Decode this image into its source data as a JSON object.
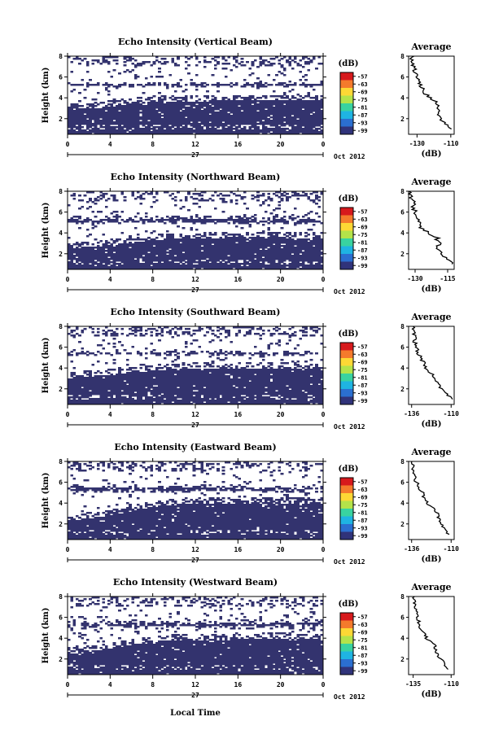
{
  "figure": {
    "xlabel": "Local Time",
    "date_label": "Oct 2012",
    "day_label": "27",
    "ylabel": "Height (km)",
    "colorbar_unit": "(dB)",
    "colorbar_ticks": [
      "-57",
      "-63",
      "-69",
      "-75",
      "-81",
      "-87",
      "-93",
      "-99"
    ],
    "colorbar_colors": [
      "#d7191c",
      "#f47a2c",
      "#fdd835",
      "#b4e34a",
      "#39d3a0",
      "#1fb4e2",
      "#2b6fd0",
      "#30337a"
    ],
    "fill_color": "#33336e",
    "avg_title": "Average",
    "avg_xlabel": "(dB)"
  },
  "chart_data": [
    {
      "type": "heatmap",
      "title": "Echo Intensity (Vertical Beam)",
      "xlabel": "Local Time",
      "ylabel": "Height (km)",
      "x_ticks": [
        "0",
        "4",
        "8",
        "12",
        "16",
        "20",
        "0"
      ],
      "y_ticks": [
        "2",
        "4",
        "6",
        "8"
      ],
      "xlim": [
        0,
        24
      ],
      "ylim": [
        0.5,
        8
      ],
      "colorbar": {
        "label": "(dB)",
        "ticks": [
          -57,
          -63,
          -69,
          -75,
          -81,
          -87,
          -93,
          -99
        ]
      },
      "dense_layer_top_km": [
        3.0,
        3.2,
        3.6,
        3.8,
        3.8,
        3.9,
        3.9,
        3.9,
        3.9
      ],
      "layer_x_hours": [
        0,
        3,
        6,
        9,
        12,
        15,
        18,
        21,
        24
      ],
      "upper_band_km": [
        5.0,
        5.5
      ],
      "average_profile": {
        "title": "Average",
        "xlabel": "(dB)",
        "x_ticks": [
          "-130",
          "-110"
        ],
        "xlim": [
          -135,
          -108
        ],
        "y_ticks": [
          "2",
          "4",
          "6",
          "8"
        ],
        "ylim": [
          0.5,
          8
        ],
        "height_km": [
          1.0,
          1.5,
          2.0,
          2.5,
          3.0,
          3.5,
          4.0,
          4.5,
          5.0,
          5.5,
          6.0,
          6.5,
          7.0,
          7.5,
          8.0
        ],
        "intensity_db": [
          -110,
          -113,
          -116,
          -118,
          -117,
          -118,
          -122,
          -126,
          -127,
          -129,
          -130,
          -131,
          -132,
          -133,
          -133
        ]
      }
    },
    {
      "type": "heatmap",
      "title": "Echo Intensity (Northward Beam)",
      "xlabel": "Local Time",
      "ylabel": "Height (km)",
      "x_ticks": [
        "0",
        "4",
        "8",
        "12",
        "16",
        "20",
        "0"
      ],
      "y_ticks": [
        "2",
        "4",
        "6",
        "8"
      ],
      "xlim": [
        0,
        24
      ],
      "ylim": [
        0.5,
        8
      ],
      "colorbar": {
        "label": "(dB)",
        "ticks": [
          -57,
          -63,
          -69,
          -75,
          -81,
          -87,
          -93,
          -99
        ]
      },
      "dense_layer_top_km": [
        2.6,
        2.9,
        3.2,
        3.5,
        3.6,
        3.7,
        3.7,
        3.7,
        3.6
      ],
      "layer_x_hours": [
        0,
        3,
        6,
        9,
        12,
        15,
        18,
        21,
        24
      ],
      "upper_band_km": [
        4.8,
        5.6
      ],
      "average_profile": {
        "title": "Average",
        "xlabel": "(dB)",
        "x_ticks": [
          "-130",
          "-115"
        ],
        "xlim": [
          -133,
          -112
        ],
        "y_ticks": [
          "2",
          "4",
          "6",
          "8"
        ],
        "ylim": [
          0.5,
          8
        ],
        "height_km": [
          1.0,
          1.5,
          2.0,
          2.5,
          3.0,
          3.5,
          4.0,
          4.5,
          5.0,
          5.5,
          6.0,
          6.5,
          7.0,
          7.5,
          8.0
        ],
        "intensity_db": [
          -113,
          -115,
          -118,
          -120,
          -119,
          -120,
          -124,
          -127,
          -128,
          -129,
          -130,
          -131,
          -131,
          -132,
          -132
        ]
      }
    },
    {
      "type": "heatmap",
      "title": "Echo Intensity (Southward Beam)",
      "xlabel": "Local Time",
      "ylabel": "Height (km)",
      "x_ticks": [
        "0",
        "4",
        "8",
        "12",
        "16",
        "20",
        "0"
      ],
      "y_ticks": [
        "2",
        "4",
        "6",
        "8"
      ],
      "xlim": [
        0,
        24
      ],
      "ylim": [
        0.5,
        8
      ],
      "colorbar": {
        "label": "(dB)",
        "ticks": [
          -57,
          -63,
          -69,
          -75,
          -81,
          -87,
          -93,
          -99
        ]
      },
      "dense_layer_top_km": [
        3.2,
        3.4,
        3.7,
        4.0,
        4.1,
        4.1,
        4.1,
        4.1,
        4.0
      ],
      "layer_x_hours": [
        0,
        3,
        6,
        9,
        12,
        15,
        18,
        21,
        24
      ],
      "upper_band_km": [
        5.2,
        5.6
      ],
      "average_profile": {
        "title": "Average",
        "xlabel": "(dB)",
        "x_ticks": [
          "-136",
          "-110"
        ],
        "xlim": [
          -138,
          -108
        ],
        "y_ticks": [
          "2",
          "4",
          "6",
          "8"
        ],
        "ylim": [
          0.5,
          8
        ],
        "height_km": [
          1.0,
          1.5,
          2.0,
          2.5,
          3.0,
          3.5,
          4.0,
          4.5,
          5.0,
          5.5,
          6.0,
          6.5,
          7.0,
          7.5,
          8.0
        ],
        "intensity_db": [
          -110,
          -113,
          -117,
          -119,
          -121,
          -123,
          -127,
          -128,
          -130,
          -132,
          -133,
          -134,
          -134,
          -135,
          -135
        ]
      }
    },
    {
      "type": "heatmap",
      "title": "Echo Intensity (Eastward Beam)",
      "xlabel": "Local Time",
      "ylabel": "Height (km)",
      "x_ticks": [
        "0",
        "4",
        "8",
        "12",
        "16",
        "20",
        "0"
      ],
      "y_ticks": [
        "2",
        "4",
        "6",
        "8"
      ],
      "xlim": [
        0,
        24
      ],
      "ylim": [
        0.5,
        8
      ],
      "colorbar": {
        "label": "(dB)",
        "ticks": [
          -57,
          -63,
          -69,
          -75,
          -81,
          -87,
          -93,
          -99
        ]
      },
      "dense_layer_top_km": [
        2.4,
        2.8,
        3.4,
        3.9,
        4.1,
        4.1,
        4.1,
        4.1,
        4.1
      ],
      "layer_x_hours": [
        0,
        3,
        6,
        9,
        12,
        15,
        18,
        21,
        24
      ],
      "upper_band_km": [
        5.0,
        5.7
      ],
      "average_profile": {
        "title": "Average",
        "xlabel": "(dB)",
        "x_ticks": [
          "-136",
          "-110"
        ],
        "xlim": [
          -138,
          -108
        ],
        "y_ticks": [
          "2",
          "4",
          "6",
          "8"
        ],
        "ylim": [
          0.5,
          8
        ],
        "height_km": [
          1.0,
          1.5,
          2.0,
          2.5,
          3.0,
          3.5,
          4.0,
          4.5,
          5.0,
          5.5,
          6.0,
          6.5,
          7.0,
          7.5,
          8.0
        ],
        "intensity_db": [
          -112,
          -114,
          -117,
          -118,
          -119,
          -121,
          -126,
          -128,
          -129,
          -131,
          -133,
          -134,
          -135,
          -135,
          -135
        ]
      }
    },
    {
      "type": "heatmap",
      "title": "Echo Intensity (Westward Beam)",
      "xlabel": "Local Time",
      "ylabel": "Height (km)",
      "x_ticks": [
        "0",
        "4",
        "8",
        "12",
        "16",
        "20",
        "0"
      ],
      "y_ticks": [
        "2",
        "4",
        "6",
        "8"
      ],
      "xlim": [
        0,
        24
      ],
      "ylim": [
        0.5,
        8
      ],
      "colorbar": {
        "label": "(dB)",
        "ticks": [
          -57,
          -63,
          -69,
          -75,
          -81,
          -87,
          -93,
          -99
        ]
      },
      "dense_layer_top_km": [
        2.6,
        3.0,
        3.5,
        3.9,
        4.0,
        4.0,
        4.1,
        4.1,
        4.0
      ],
      "layer_x_hours": [
        0,
        3,
        6,
        9,
        12,
        15,
        18,
        21,
        24
      ],
      "upper_band_km": [
        4.9,
        5.8
      ],
      "average_profile": {
        "title": "Average",
        "xlabel": "(dB)",
        "x_ticks": [
          "-135",
          "-110"
        ],
        "xlim": [
          -138,
          -108
        ],
        "y_ticks": [
          "2",
          "4",
          "6",
          "8"
        ],
        "ylim": [
          0.5,
          8
        ],
        "height_km": [
          1.0,
          1.5,
          2.0,
          2.5,
          3.0,
          3.5,
          4.0,
          4.5,
          5.0,
          5.5,
          6.0,
          6.5,
          7.0,
          7.5,
          8.0
        ],
        "intensity_db": [
          -112,
          -114,
          -117,
          -119,
          -120,
          -122,
          -126,
          -128,
          -130,
          -131,
          -132,
          -133,
          -134,
          -134,
          -135
        ]
      }
    }
  ]
}
